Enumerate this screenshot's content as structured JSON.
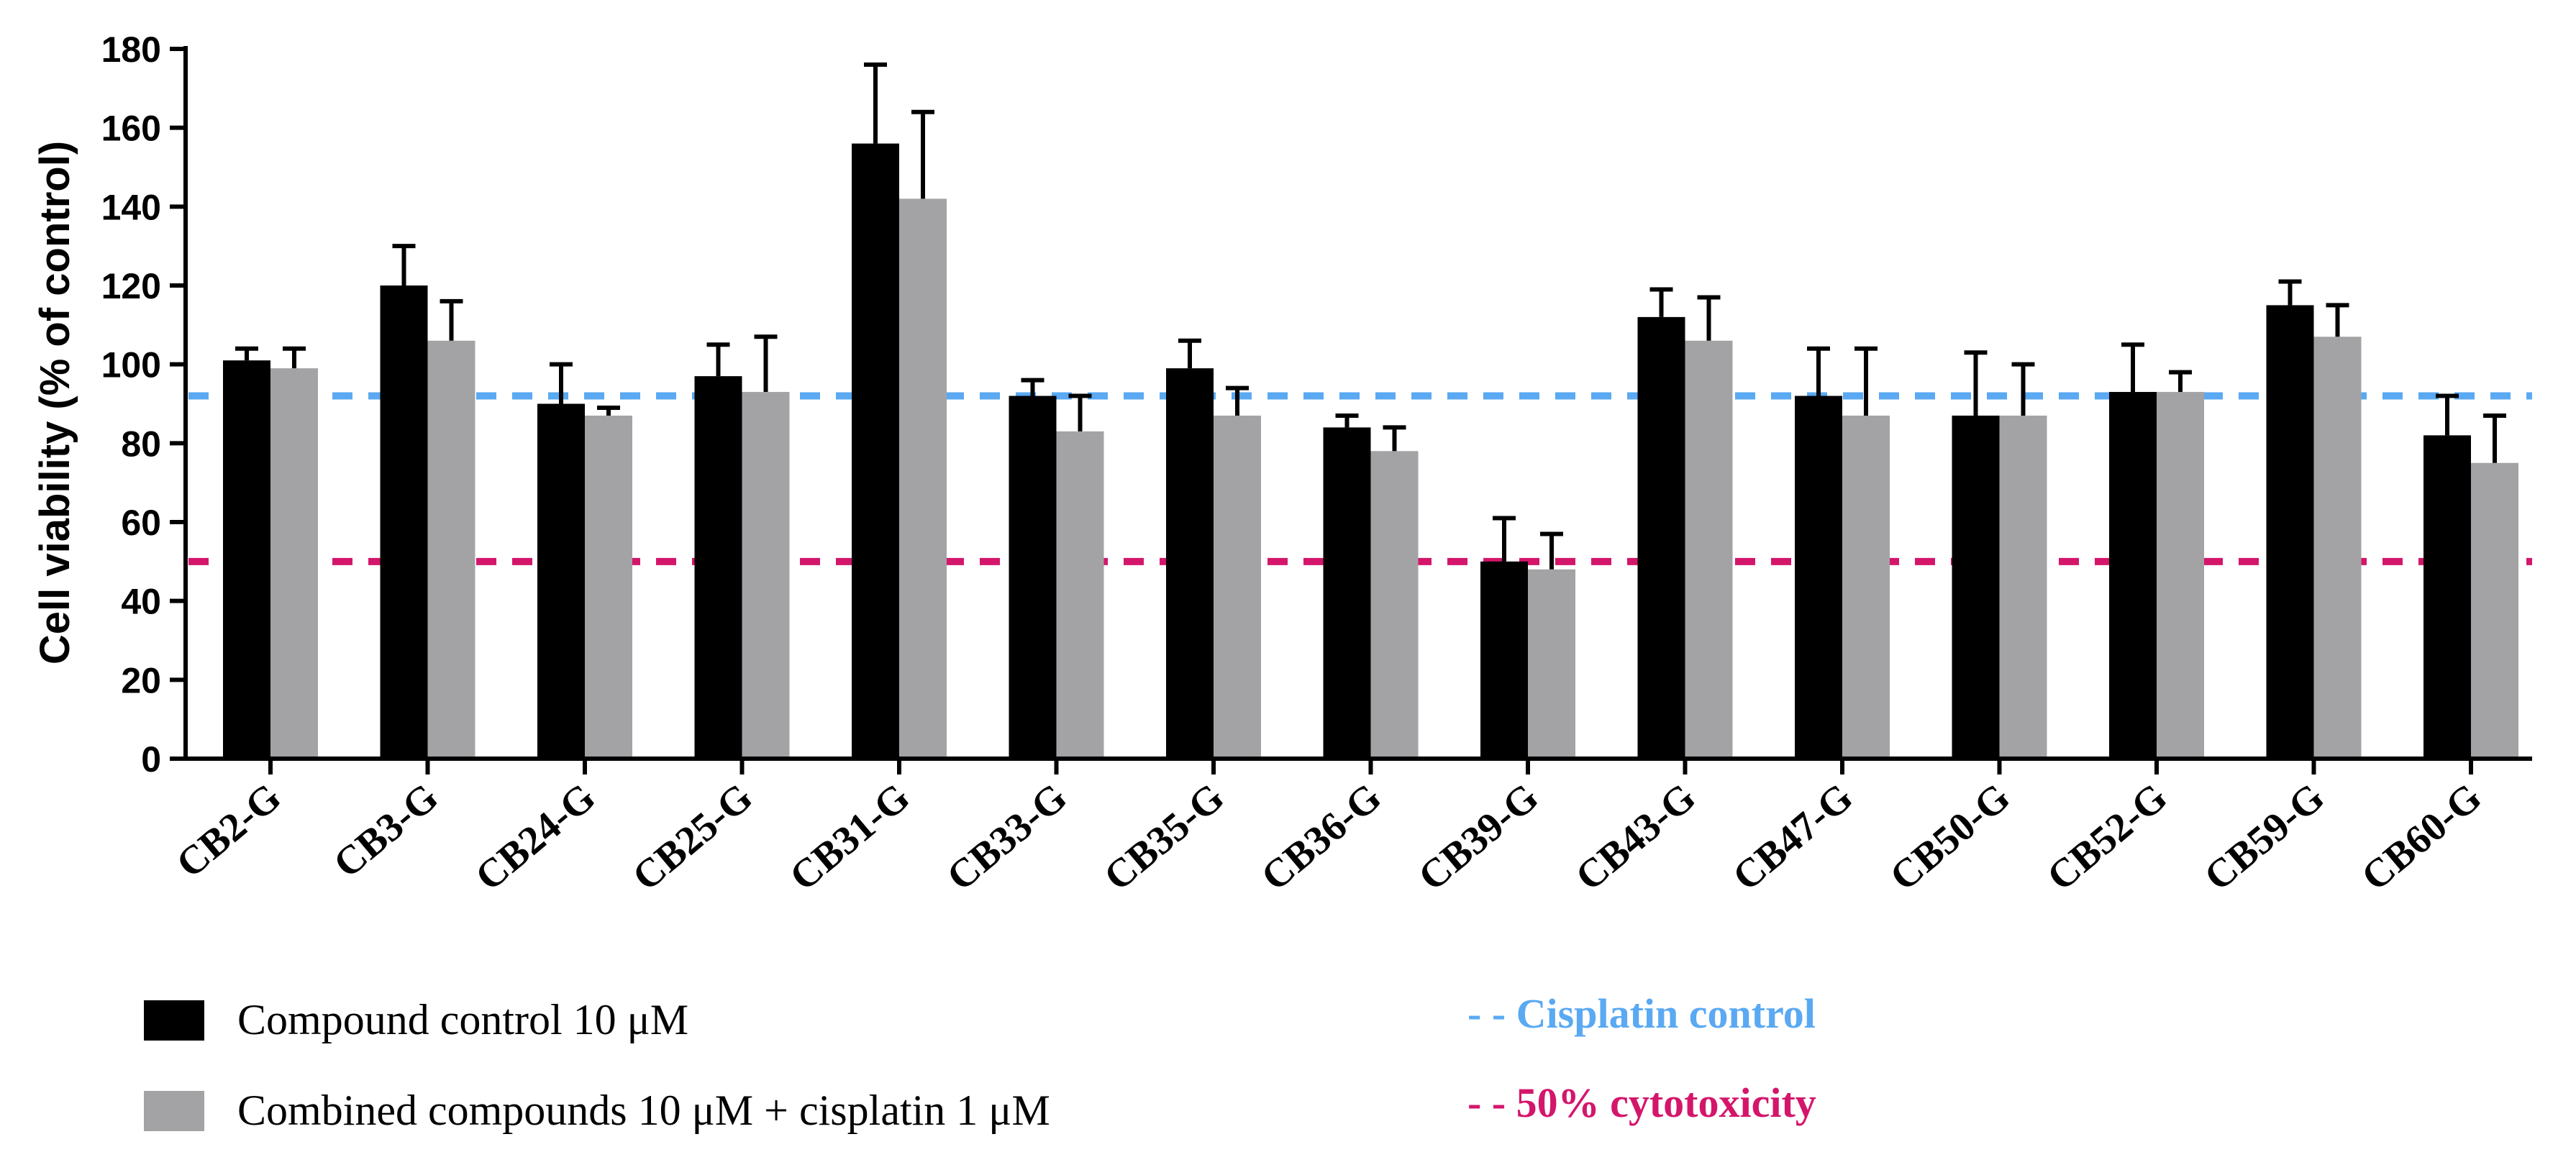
{
  "chart_data": {
    "type": "bar",
    "ylabel": "Cell viability (% of control)",
    "ylim": [
      0,
      180
    ],
    "yticks": [
      0,
      20,
      40,
      60,
      80,
      100,
      120,
      140,
      160,
      180
    ],
    "categories": [
      "CB2-G",
      "CB3-G",
      "CB24-G",
      "CB25-G",
      "CB31-G",
      "CB33-G",
      "CB35-G",
      "CB36-G",
      "CB39-G",
      "CB43-G",
      "CB47-G",
      "CB50-G",
      "CB52-G",
      "CB59-G",
      "CB60-G"
    ],
    "series": [
      {
        "name": "Compound control 10 μM",
        "color": "#000000",
        "values": [
          101,
          120,
          90,
          97,
          156,
          92,
          99,
          84,
          50,
          112,
          92,
          87,
          93,
          115,
          82
        ],
        "errors": [
          3,
          10,
          10,
          8,
          20,
          4,
          7,
          3,
          11,
          7,
          12,
          16,
          12,
          6,
          10
        ]
      },
      {
        "name": "Combined compounds 10 μM + cisplatin 1 μM",
        "color": "#a3a3a6",
        "values": [
          99,
          106,
          87,
          93,
          142,
          83,
          87,
          78,
          48,
          106,
          87,
          87,
          93,
          107,
          75
        ],
        "errors": [
          5,
          10,
          2,
          14,
          22,
          9,
          7,
          6,
          9,
          11,
          17,
          13,
          5,
          8,
          12
        ]
      }
    ],
    "reference_lines": [
      {
        "label": "- - Cisplatin control",
        "value": 92,
        "color": "#5aa9f2"
      },
      {
        "label": "- - 50% cytotoxicity",
        "value": 50,
        "color": "#d4166b"
      }
    ]
  }
}
